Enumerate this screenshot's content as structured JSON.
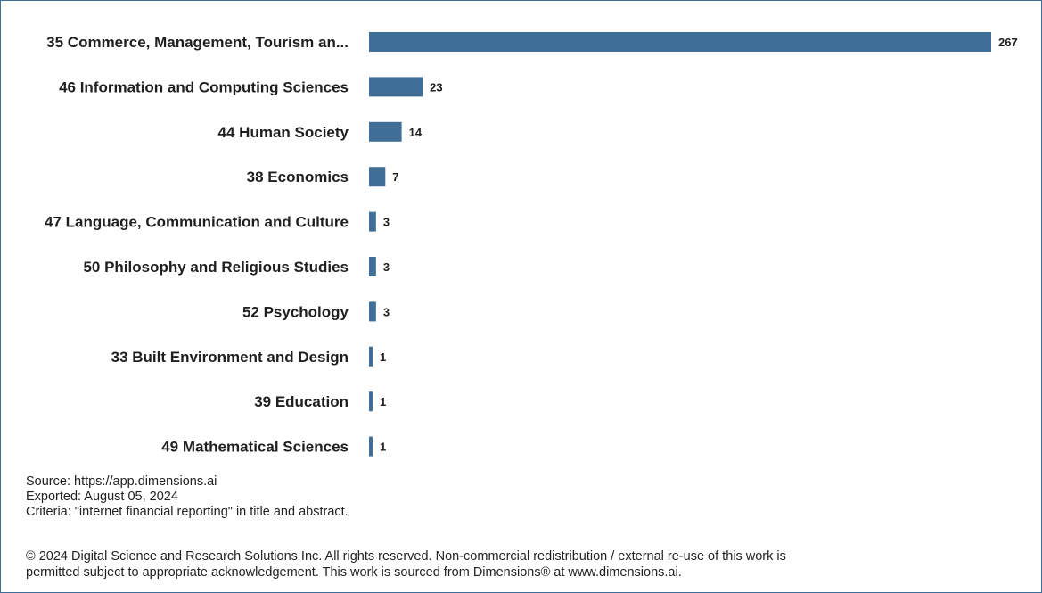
{
  "chart_data": {
    "type": "bar",
    "orientation": "horizontal",
    "title": "",
    "xlabel": "",
    "ylabel": "",
    "categories": [
      "35 Commerce, Management, Tourism an...",
      "46 Information and Computing Sciences",
      "44 Human Society",
      "38 Economics",
      "47 Language, Communication and Culture",
      "50 Philosophy and Religious Studies",
      "52 Psychology",
      "33 Built Environment and Design",
      "39 Education",
      "49 Mathematical Sciences"
    ],
    "values": [
      267,
      23,
      14,
      7,
      3,
      3,
      3,
      1,
      1,
      1
    ],
    "value_labels": [
      "267",
      "23",
      "14",
      "7",
      "3",
      "3",
      "3",
      "1",
      "1",
      "1"
    ],
    "xlim": [
      0,
      267
    ],
    "grid": false,
    "bar_color": "#3f6f96"
  },
  "footer": {
    "source": "Source: https://app.dimensions.ai",
    "exported": "Exported: August 05, 2024",
    "criteria": "Criteria: \"internet financial reporting\" in title and abstract.",
    "copyright_line1": "© 2024 Digital Science and Research Solutions Inc. All rights reserved. Non-commercial redistribution / external re-use of this work is",
    "copyright_line2": "permitted subject to appropriate acknowledgement. This work is sourced from Dimensions® at www.dimensions.ai."
  }
}
